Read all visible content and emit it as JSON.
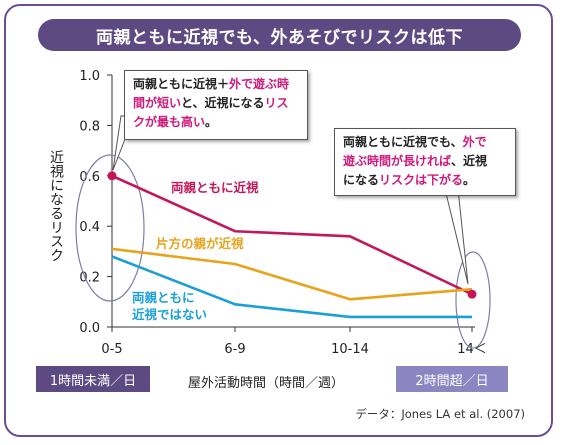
{
  "title": "両親ともに近視でも、外あそびでリスクは低下",
  "chart_data": {
    "type": "line",
    "x": [
      "0-5",
      "6-9",
      "10-14",
      "14＜"
    ],
    "ylabel": "近視になるリスク",
    "xlabel": "屋外活動時間（時間／週）",
    "ylim": [
      0.0,
      1.0
    ],
    "yticks": [
      "0.0",
      "0.2",
      "0.4",
      "0.6",
      "0.8",
      "1.0"
    ],
    "grid": false,
    "series": [
      {
        "name": "両親ともに近視",
        "values": [
          0.6,
          0.38,
          0.36,
          0.13
        ],
        "color": "#c2185b",
        "markers": [
          0,
          3
        ]
      },
      {
        "name": "片方の親が近視",
        "values": [
          0.31,
          0.25,
          0.11,
          0.15
        ],
        "color": "#e8a21c"
      },
      {
        "name": "両親ともに近視ではない",
        "label_lines": [
          "両親ともに",
          "近視ではない"
        ],
        "values": [
          0.28,
          0.09,
          0.04,
          0.04
        ],
        "color": "#1a9fd7"
      }
    ]
  },
  "callouts": {
    "left": {
      "line1_a": "両親ともに近視＋",
      "line1_b": "外で遊ぶ時",
      "line2_a": "間が短い",
      "line2_b": "と、近視になる",
      "line2_c": "リス",
      "line3_a": "クが最も高い",
      "line3_b": "。"
    },
    "right": {
      "line1_a": "両親ともに近視でも、",
      "line1_b": "外で",
      "line2_a": "遊ぶ時間が長ければ",
      "line2_b": "、近視",
      "line3_a": "になる",
      "line3_b": "リスクは下がる",
      "line3_c": "。"
    }
  },
  "badges": {
    "left": {
      "label": "1時間未満／日",
      "color": "#5e4a83"
    },
    "right": {
      "label": "2時間超／日",
      "color": "#8b86c2"
    }
  },
  "source": "データ：Jones LA et al. (2007)"
}
